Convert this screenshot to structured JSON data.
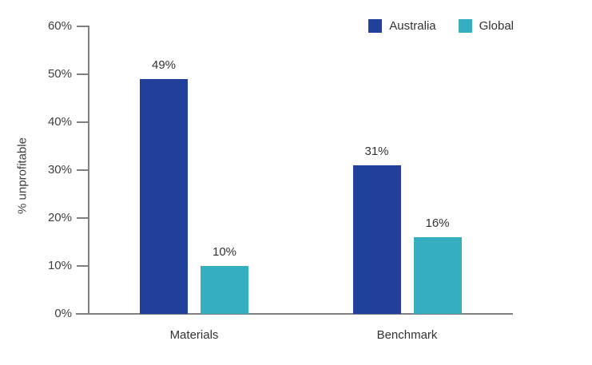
{
  "chart_data": {
    "type": "bar",
    "title": "",
    "categories": [
      "Materials",
      "Benchmark"
    ],
    "series": [
      {
        "name": "Australia",
        "color": "#21409B",
        "values": [
          49,
          31
        ],
        "labels": [
          "49%",
          "31%"
        ]
      },
      {
        "name": "Global",
        "color": "#36AEC1",
        "values": [
          10,
          16
        ],
        "labels": [
          "10%",
          "16%"
        ]
      }
    ],
    "xlabel": "",
    "ylabel": "% unprofitable",
    "ylim": [
      0,
      60
    ],
    "ytick_step": 10,
    "yticks": [
      "0%",
      "10%",
      "20%",
      "30%",
      "40%",
      "50%",
      "60%"
    ],
    "grid": false,
    "legend_position": "top-right"
  },
  "colors": {
    "axis": "#7F7F7F",
    "tick_text": "#3F3F3F",
    "label_text": "#333333",
    "background": "#FFFFFF"
  }
}
